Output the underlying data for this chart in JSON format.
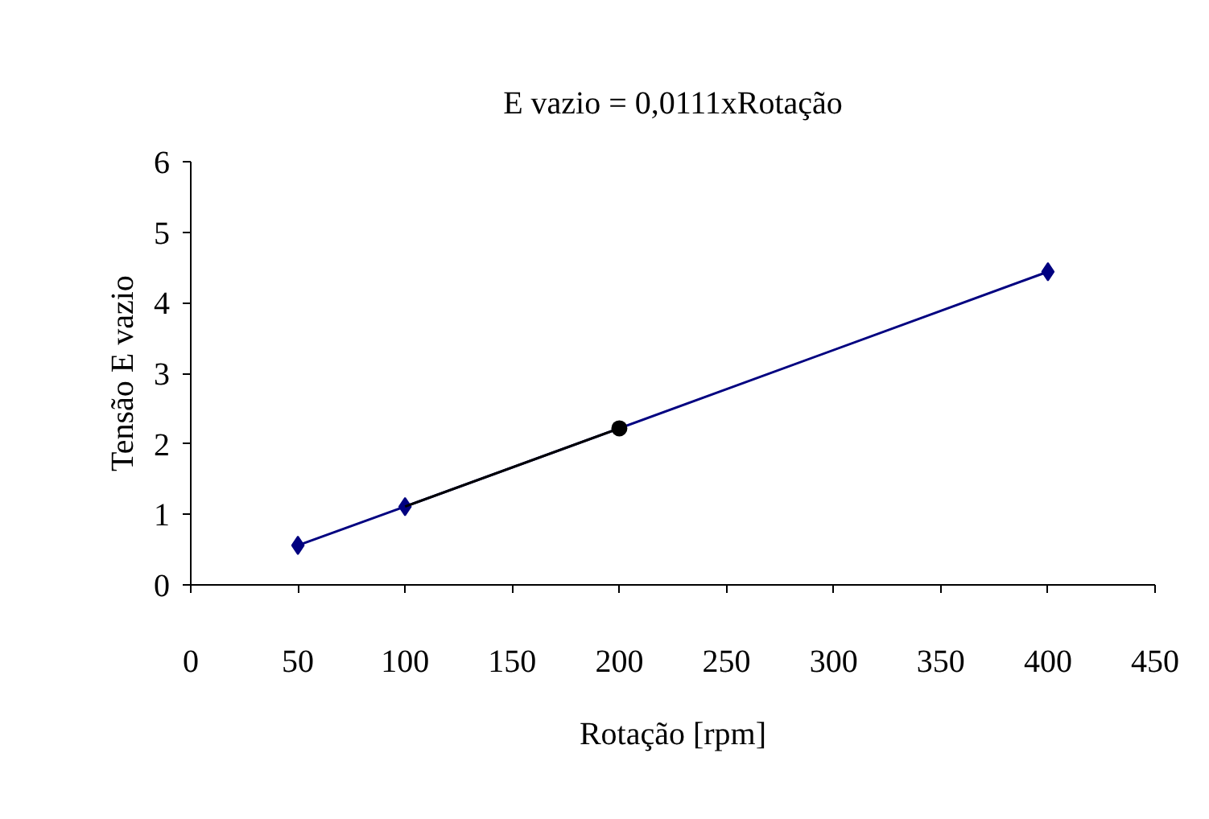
{
  "chart_data": {
    "type": "line",
    "title": "E vazio = 0,0111xRotação",
    "xlabel": "Rotação [rpm]",
    "ylabel": "Tensão E vazio",
    "series": [
      {
        "color": "#000080",
        "x": [
          50,
          100,
          400
        ],
        "values": [
          0.56,
          1.11,
          4.44
        ],
        "marker": "diamond"
      },
      {
        "color": "#000000",
        "x": [
          100,
          200
        ],
        "values": [
          1.11,
          2.22
        ],
        "marker": "none"
      },
      {
        "type": "scatter",
        "color": "#000000",
        "x": [
          200
        ],
        "values": [
          2.22
        ],
        "marker": "circle"
      }
    ],
    "xlim": [
      0,
      450
    ],
    "xticks": [
      0,
      50,
      100,
      150,
      200,
      250,
      300,
      350,
      400,
      450
    ],
    "ylim": [
      0,
      6
    ],
    "yticks": [
      0,
      1,
      2,
      3,
      4,
      5,
      6
    ],
    "grid": false
  }
}
